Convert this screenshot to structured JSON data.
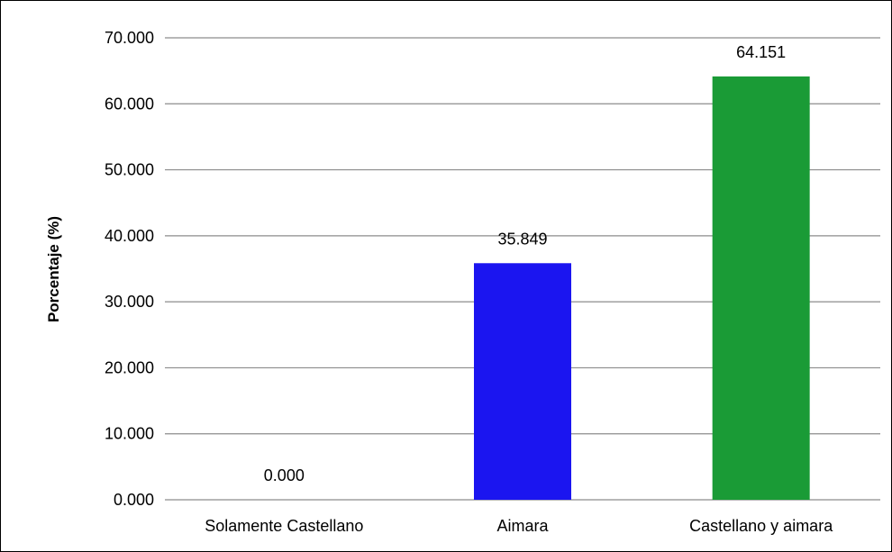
{
  "chart_data": {
    "type": "bar",
    "title": "",
    "xlabel": "",
    "ylabel": "Porcentaje (%)",
    "ylim": [
      0,
      70
    ],
    "ytick_step": 10,
    "ytick_labels": [
      "0.000",
      "10.000",
      "20.000",
      "30.000",
      "40.000",
      "50.000",
      "60.000",
      "70.000"
    ],
    "grid": true,
    "legend": "none",
    "categories": [
      "Solamente Castellano",
      "Aimara",
      "Castellano y aimara"
    ],
    "values": [
      0.0,
      35.849,
      64.151
    ],
    "value_labels": [
      "0.000",
      "35.849",
      "64.151"
    ],
    "bar_colors": [
      "#1b15f0",
      "#1b15f0",
      "#1a9b36"
    ],
    "gridline_color": "#8c8c8c",
    "axis_color": "#8c8c8c"
  }
}
